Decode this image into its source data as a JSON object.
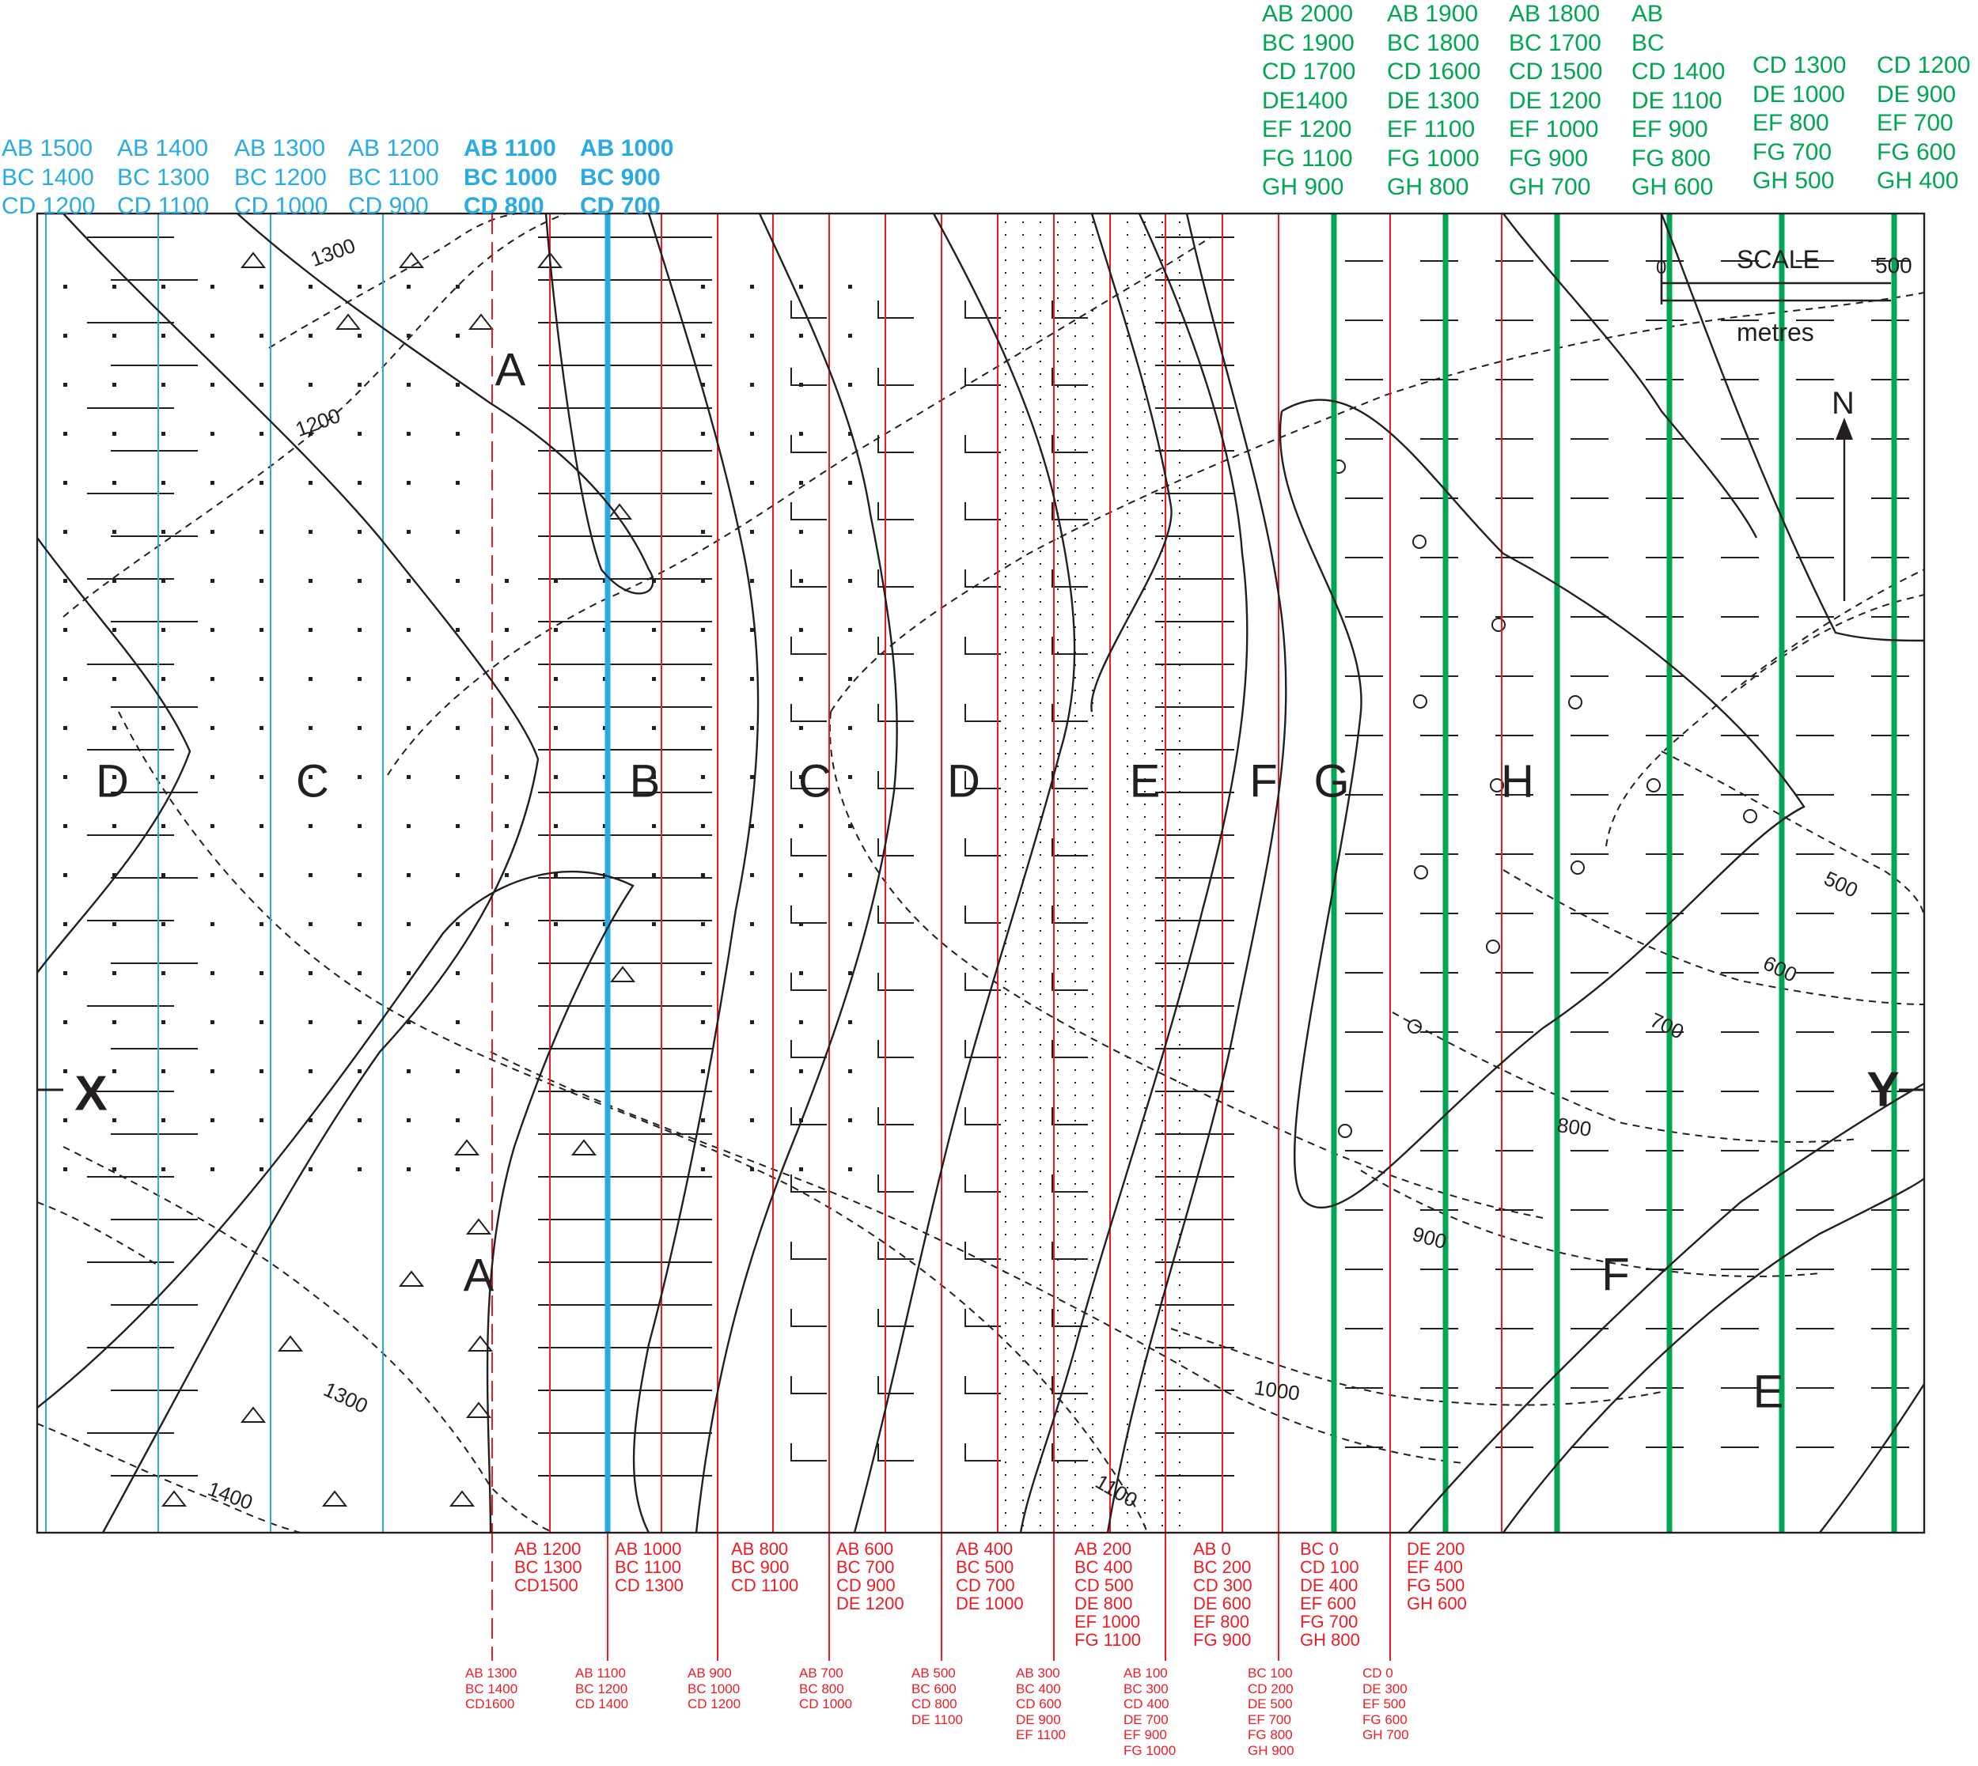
{
  "map": {
    "units": [
      "A",
      "A",
      "B",
      "C",
      "C",
      "D",
      "D",
      "E",
      "E",
      "F",
      "F",
      "G",
      "H"
    ],
    "section_ends": [
      "X",
      "Y"
    ],
    "contours": [
      "1300",
      "1200",
      "1300",
      "1400",
      "1100",
      "1000",
      "900",
      "800",
      "700",
      "600",
      "500"
    ],
    "scale": {
      "title": "SCALE",
      "start": "0",
      "end": "500",
      "unit": "metres"
    },
    "north_label": "N",
    "colors": {
      "blue_lines": "#29abe2",
      "red_lines": "#ed1c24",
      "green_lines": "#00a651",
      "linework": "#231f20"
    }
  },
  "top_labels": {
    "blue": [
      [
        "AB 1500",
        "BC 1400",
        "CD 1200"
      ],
      [
        "AB 1400",
        "BC 1300",
        "CD 1100"
      ],
      [
        "AB 1300",
        "BC 1200",
        "CD 1000"
      ],
      [
        "AB 1200",
        "BC 1100",
        "CD 900"
      ],
      [
        "AB 1100",
        "BC 1000",
        "CD 800"
      ],
      [
        "AB 1000",
        "BC 900",
        "CD 700"
      ]
    ],
    "green": [
      [
        "AB 2000",
        "BC 1900",
        "CD 1700",
        "DE1400",
        "EF 1200",
        "FG 1100",
        "GH 900"
      ],
      [
        "AB 1900",
        "BC 1800",
        "CD 1600",
        "DE 1300",
        "EF 1100",
        "FG 1000",
        "GH 800"
      ],
      [
        "AB 1800",
        "BC 1700",
        "CD 1500",
        "DE 1200",
        "EF 1000",
        "FG 900",
        "GH 700"
      ],
      [
        "AB",
        "BC",
        "CD 1400",
        "DE 1100",
        "EF 900",
        "FG 800",
        "GH 600"
      ],
      [
        "CD 1300",
        "DE 1000",
        "EF 800",
        "FG 700",
        "GH 500"
      ],
      [
        "CD 1200",
        "DE 900",
        "EF 700",
        "FG 600",
        "GH 400"
      ]
    ]
  },
  "bottom_labels": {
    "upper": [
      [
        "AB 1200",
        "BC 1300",
        "CD1500"
      ],
      [
        "AB 1000",
        "BC 1100",
        "CD 1300"
      ],
      [
        "AB 800",
        "BC 900",
        "CD 1100"
      ],
      [
        "AB 600",
        "BC 700",
        "CD 900",
        "DE 1200"
      ],
      [
        "AB 400",
        "BC 500",
        "CD 700",
        "DE 1000"
      ],
      [
        "AB 200",
        "BC 400",
        "CD 500",
        "DE 800",
        "EF 1000",
        "FG 1100"
      ],
      [
        "AB 0",
        "BC 200",
        "CD 300",
        "DE 600",
        "EF 800",
        "FG 900"
      ],
      [
        "BC 0",
        "CD 100",
        "DE 400",
        "EF 600",
        "FG 700",
        "GH 800"
      ],
      [
        "DE 200",
        "EF 400",
        "FG 500",
        "GH 600"
      ]
    ],
    "lower": [
      [
        "AB 1300",
        "BC 1400",
        "CD1600"
      ],
      [
        "AB 1100",
        "BC 1200",
        "CD 1400"
      ],
      [
        "AB 900",
        "BC 1000",
        "CD 1200"
      ],
      [
        "AB 700",
        "BC 800",
        "CD 1000"
      ],
      [
        "AB 500",
        "BC 600",
        "CD 800",
        "DE 1100"
      ],
      [
        "AB 300",
        "BC 400",
        "CD 600",
        "DE 900",
        "EF 1100"
      ],
      [
        "AB 100",
        "BC 300",
        "CD 400",
        "DE 700",
        "EF 900",
        "FG 1000"
      ],
      [
        "BC 100",
        "CD 200",
        "DE 500",
        "EF 700",
        "FG 800",
        "GH 900"
      ],
      [
        "CD 0",
        "DE 300",
        "EF 500",
        "FG 600",
        "GH 700"
      ]
    ]
  }
}
